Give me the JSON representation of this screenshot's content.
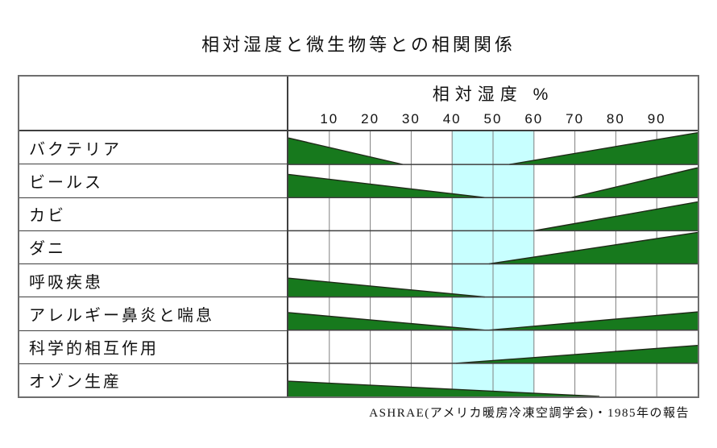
{
  "title": "相対湿度と微生物等との相関関係",
  "source_note": "ASHRAE(アメリカ暖房冷凍空調学会)・1985年の報告",
  "chart_data": {
    "type": "area",
    "title": "相対湿度と微生物等との相関関係",
    "x_axis": {
      "title": "相対湿度  %",
      "unit": "%",
      "range": [
        0,
        100
      ],
      "ticks": [
        "10",
        "20",
        "30",
        "40",
        "50",
        "60",
        "70",
        "80",
        "90"
      ]
    },
    "optimal_band": {
      "from": 40,
      "to": 60
    },
    "rows": [
      {
        "label": "バクテリア",
        "segments": [
          {
            "from": 0,
            "to": 28,
            "level_from": 0.8,
            "level_to": 0
          },
          {
            "from": 54,
            "to": 100,
            "level_from": 0,
            "level_to": 0.96
          }
        ]
      },
      {
        "label": "ビールス",
        "segments": [
          {
            "from": 0,
            "to": 48,
            "level_from": 0.7,
            "level_to": 0
          },
          {
            "from": 69,
            "to": 100,
            "level_from": 0,
            "level_to": 0.9
          }
        ]
      },
      {
        "label": "カビ",
        "segments": [
          {
            "from": 60,
            "to": 100,
            "level_from": 0,
            "level_to": 0.87
          }
        ]
      },
      {
        "label": "ダニ",
        "segments": [
          {
            "from": 49,
            "to": 100,
            "level_from": 0,
            "level_to": 0.95
          }
        ]
      },
      {
        "label": "呼吸疾患",
        "segments": [
          {
            "from": 0,
            "to": 48,
            "level_from": 0.57,
            "level_to": 0
          }
        ]
      },
      {
        "label": "アレルギー鼻炎と喘息",
        "segments": [
          {
            "from": 0,
            "to": 48,
            "level_from": 0.53,
            "level_to": 0
          },
          {
            "from": 49,
            "to": 100,
            "level_from": 0,
            "level_to": 0.55
          }
        ]
      },
      {
        "label": "科学的相互作用",
        "segments": [
          {
            "from": 41,
            "to": 100,
            "level_from": 0,
            "level_to": 0.54
          }
        ]
      },
      {
        "label": "オゾン生産",
        "segments": [
          {
            "from": 0,
            "to": 76,
            "level_from": 0.46,
            "level_to": 0
          }
        ]
      }
    ],
    "colors": {
      "wedge": "#17791d",
      "wedge_edge": "#1f2a18",
      "band": "#c8ffff",
      "grid": "#808080",
      "row_line": "#3f3f3f"
    }
  }
}
